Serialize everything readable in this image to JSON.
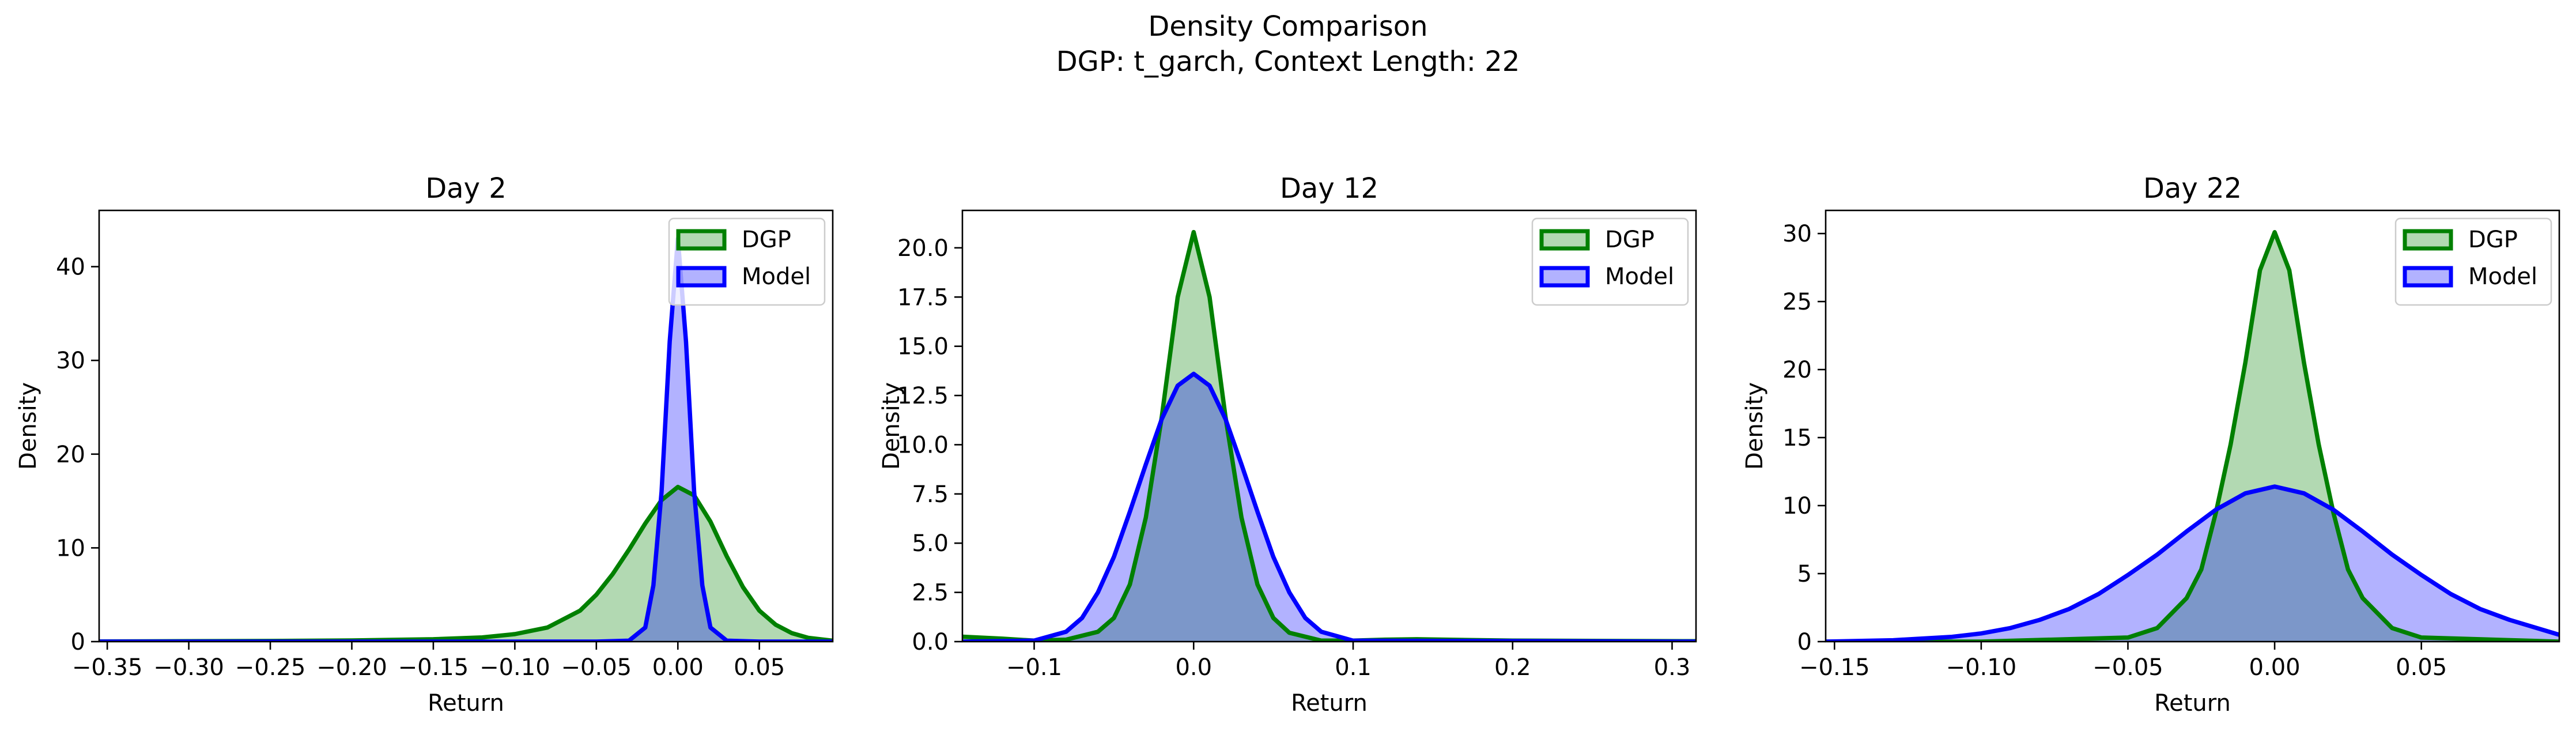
{
  "figure": {
    "suptitle_line1": "Density Comparison",
    "suptitle_line2": "DGP: t_garch, Context Length: 22"
  },
  "colors": {
    "dgp_line": "#008000",
    "dgp_fill": "#008000",
    "model_line": "#0000ff",
    "model_fill": "#0000ff"
  },
  "chart_data": [
    {
      "type": "area",
      "title": "Day 2",
      "xlabel": "Return",
      "ylabel": "Density",
      "xlim": [
        -0.355,
        0.095
      ],
      "ylim": [
        0,
        46
      ],
      "xticks": [
        -0.35,
        -0.3,
        -0.25,
        -0.2,
        -0.15,
        -0.1,
        -0.05,
        0.0,
        0.05
      ],
      "xtick_labels": [
        "−0.35",
        "−0.30",
        "−0.25",
        "−0.20",
        "−0.15",
        "−0.10",
        "−0.05",
        "0.00",
        "0.05"
      ],
      "yticks": [
        0,
        10,
        20,
        30,
        40
      ],
      "ytick_labels": [
        "0",
        "10",
        "20",
        "30",
        "40"
      ],
      "legend": "top-right",
      "series": [
        {
          "name": "DGP",
          "x": [
            -0.355,
            -0.3,
            -0.25,
            -0.2,
            -0.15,
            -0.12,
            -0.1,
            -0.08,
            -0.06,
            -0.05,
            -0.04,
            -0.03,
            -0.02,
            -0.01,
            0.0,
            0.01,
            0.02,
            0.03,
            0.04,
            0.05,
            0.06,
            0.07,
            0.08,
            0.095
          ],
          "y": [
            0.02,
            0.04,
            0.07,
            0.12,
            0.25,
            0.45,
            0.8,
            1.5,
            3.3,
            5.0,
            7.2,
            9.8,
            12.6,
            15.1,
            16.5,
            15.6,
            12.8,
            9.1,
            5.8,
            3.3,
            1.8,
            0.9,
            0.4,
            0.1
          ]
        },
        {
          "name": "Model",
          "x": [
            -0.355,
            -0.05,
            -0.03,
            -0.02,
            -0.015,
            -0.01,
            -0.005,
            0.0,
            0.005,
            0.01,
            0.015,
            0.02,
            0.03,
            0.05,
            0.095
          ],
          "y": [
            0,
            0,
            0.1,
            1.5,
            6.0,
            16.0,
            32.0,
            43.0,
            32.0,
            16.0,
            6.0,
            1.5,
            0.1,
            0,
            0
          ]
        }
      ]
    },
    {
      "type": "area",
      "title": "Day 12",
      "xlabel": "Return",
      "ylabel": "Density",
      "xlim": [
        -0.145,
        0.315
      ],
      "ylim": [
        0,
        21.9
      ],
      "xticks": [
        -0.1,
        0.0,
        0.1,
        0.2,
        0.3
      ],
      "xtick_labels": [
        "−0.1",
        "0.0",
        "0.1",
        "0.2",
        "0.3"
      ],
      "yticks": [
        0,
        2.5,
        5.0,
        7.5,
        10.0,
        12.5,
        15.0,
        17.5,
        20.0
      ],
      "ytick_labels": [
        "0.0",
        "2.5",
        "5.0",
        "7.5",
        "10.0",
        "12.5",
        "15.0",
        "17.5",
        "20.0"
      ],
      "legend": "top-right",
      "series": [
        {
          "name": "DGP",
          "x": [
            -0.145,
            -0.12,
            -0.1,
            -0.08,
            -0.06,
            -0.05,
            -0.04,
            -0.03,
            -0.02,
            -0.01,
            0.0,
            0.01,
            0.02,
            0.03,
            0.04,
            0.05,
            0.06,
            0.08,
            0.1,
            0.12,
            0.14,
            0.2,
            0.315
          ],
          "y": [
            0.25,
            0.15,
            0.05,
            0.1,
            0.5,
            1.2,
            2.9,
            6.3,
            11.4,
            17.5,
            20.8,
            17.5,
            11.4,
            6.3,
            2.9,
            1.2,
            0.45,
            0.05,
            0.05,
            0.1,
            0.12,
            0.05,
            0.02
          ]
        },
        {
          "name": "Model",
          "x": [
            -0.145,
            -0.1,
            -0.08,
            -0.07,
            -0.06,
            -0.05,
            -0.04,
            -0.03,
            -0.02,
            -0.01,
            0.0,
            0.01,
            0.02,
            0.03,
            0.04,
            0.05,
            0.06,
            0.07,
            0.08,
            0.1,
            0.315
          ],
          "y": [
            0,
            0.05,
            0.5,
            1.2,
            2.5,
            4.3,
            6.6,
            9.0,
            11.3,
            13.0,
            13.6,
            13.0,
            11.3,
            9.0,
            6.6,
            4.3,
            2.5,
            1.2,
            0.5,
            0.05,
            0
          ]
        }
      ]
    },
    {
      "type": "area",
      "title": "Day 22",
      "xlabel": "Return",
      "ylabel": "Density",
      "xlim": [
        -0.153,
        0.097
      ],
      "ylim": [
        0,
        31.7
      ],
      "xticks": [
        -0.15,
        -0.1,
        -0.05,
        0.0,
        0.05
      ],
      "xtick_labels": [
        "−0.15",
        "−0.10",
        "−0.05",
        "0.00",
        "0.05"
      ],
      "yticks": [
        0,
        5,
        10,
        15,
        20,
        25,
        30
      ],
      "ytick_labels": [
        "0",
        "5",
        "10",
        "15",
        "20",
        "25",
        "30"
      ],
      "legend": "top-right",
      "series": [
        {
          "name": "DGP",
          "x": [
            -0.153,
            -0.1,
            -0.05,
            -0.04,
            -0.03,
            -0.025,
            -0.02,
            -0.015,
            -0.01,
            -0.005,
            0.0,
            0.005,
            0.01,
            0.015,
            0.02,
            0.025,
            0.03,
            0.04,
            0.05,
            0.097
          ],
          "y": [
            0,
            0,
            0.3,
            1.0,
            3.2,
            5.3,
            9.5,
            14.5,
            20.5,
            27.3,
            30.1,
            27.3,
            20.5,
            14.5,
            9.5,
            5.3,
            3.2,
            1.0,
            0.3,
            0
          ]
        },
        {
          "name": "Model",
          "x": [
            -0.153,
            -0.13,
            -0.11,
            -0.1,
            -0.09,
            -0.08,
            -0.07,
            -0.06,
            -0.05,
            -0.04,
            -0.03,
            -0.02,
            -0.01,
            0.0,
            0.01,
            0.02,
            0.03,
            0.04,
            0.05,
            0.06,
            0.07,
            0.08,
            0.097
          ],
          "y": [
            0,
            0.1,
            0.35,
            0.6,
            1.0,
            1.6,
            2.4,
            3.5,
            4.9,
            6.4,
            8.1,
            9.7,
            10.9,
            11.4,
            10.9,
            9.7,
            8.1,
            6.4,
            4.9,
            3.5,
            2.4,
            1.6,
            0.5
          ]
        }
      ]
    }
  ]
}
